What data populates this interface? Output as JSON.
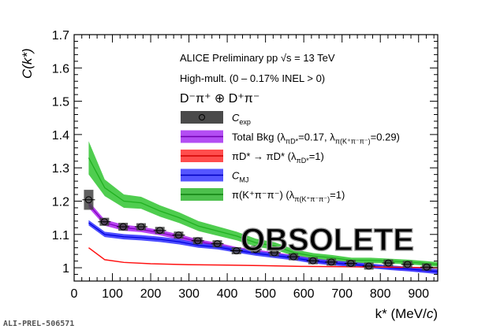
{
  "chart_data": {
    "type": "line",
    "xlabel_main": "k* (MeV/",
    "xlabel_c": "c",
    "xlabel_end": ")",
    "ylabel": "C(k*)",
    "xlim": [
      0,
      950
    ],
    "ylim": [
      0.96,
      1.7
    ],
    "xticks": [
      0,
      100,
      200,
      300,
      400,
      500,
      600,
      700,
      800,
      900
    ],
    "yticks": [
      1,
      1.1,
      1.2,
      1.3,
      1.4,
      1.5,
      1.6,
      1.7
    ],
    "annotations": {
      "line1": "ALICE Preliminary pp √s = 13 TeV",
      "line2": "High-mult. (0 – 0.17% INEL > 0)",
      "line3": "D⁻π⁺ ⊕ D⁺π⁻",
      "watermark": "OBSOLETE",
      "figure_id": "ALI-PREL-506571"
    },
    "legend": [
      {
        "key": "data",
        "color": "#555555",
        "parts": [
          {
            "t": "C"
          },
          {
            "sub": "exp"
          }
        ]
      },
      {
        "key": "total",
        "color": "#a020f0",
        "parts": [
          {
            "t": "Total Bkg (λ"
          },
          {
            "sub": "πD*"
          },
          {
            "t": "=0.17, λ"
          },
          {
            "sub": "π(K⁺π⁻π⁻)"
          },
          {
            "t": "=0.29)"
          }
        ]
      },
      {
        "key": "red",
        "color": "#ff2020",
        "parts": [
          {
            "t": "πD* → πD* (λ"
          },
          {
            "sub": "πD*"
          },
          {
            "t": "=1)"
          }
        ]
      },
      {
        "key": "mj",
        "color": "#2a2aff",
        "parts": [
          {
            "t": "C"
          },
          {
            "sub": "MJ"
          }
        ]
      },
      {
        "key": "green",
        "color": "#20b020",
        "parts": [
          {
            "t": "π(K⁺π⁻π⁻) (λ"
          },
          {
            "sub": "π(K⁺π⁻π⁻)"
          },
          {
            "t": "=1)"
          }
        ]
      }
    ],
    "data_points": {
      "x": [
        38,
        79,
        128,
        175,
        224,
        273,
        323,
        374,
        424,
        474,
        523,
        573,
        624,
        672,
        723,
        770,
        821,
        871,
        921
      ],
      "y": [
        1.204,
        1.138,
        1.123,
        1.123,
        1.112,
        1.098,
        1.081,
        1.072,
        1.051,
        1.055,
        1.045,
        1.033,
        1.021,
        1.017,
        1.013,
        1.005,
        1.014,
        1.01,
        1.002
      ],
      "syst": [
        0.03,
        0.012,
        0.012,
        0.01,
        0.008,
        0.008,
        0.007,
        0.007,
        0.006,
        0.006,
        0.006,
        0.005,
        0.005,
        0.005,
        0.005,
        0.005,
        0.005,
        0.005,
        0.005
      ]
    },
    "series": [
      {
        "name": "green",
        "color": "#20b020",
        "band": "#3cc83c",
        "x": [
          38,
          80,
          130,
          175,
          225,
          275,
          325,
          375,
          425,
          475,
          525,
          575,
          625,
          675,
          725,
          775,
          825,
          875,
          950
        ],
        "y": [
          1.33,
          1.24,
          1.2,
          1.195,
          1.17,
          1.15,
          1.125,
          1.11,
          1.095,
          1.075,
          1.065,
          1.045,
          1.035,
          1.03,
          1.022,
          1.022,
          1.02,
          1.017,
          1.01
        ],
        "err": [
          0.05,
          0.025,
          0.02,
          0.018,
          0.017,
          0.016,
          0.015,
          0.014,
          0.013,
          0.012,
          0.011,
          0.01,
          0.009,
          0.008,
          0.008,
          0.008,
          0.007,
          0.007,
          0.007
        ]
      },
      {
        "name": "total",
        "color": "#8000c0",
        "band": "#b030f0",
        "x": [
          38,
          80,
          130,
          175,
          225,
          275,
          325,
          375,
          425,
          475,
          525,
          575,
          625,
          675,
          725,
          775,
          825,
          875,
          950
        ],
        "y": [
          1.19,
          1.135,
          1.12,
          1.115,
          1.105,
          1.092,
          1.078,
          1.068,
          1.055,
          1.048,
          1.04,
          1.032,
          1.022,
          1.016,
          1.011,
          1.006,
          1.0,
          0.996,
          0.99
        ],
        "err": [
          0.01,
          0.009,
          0.009,
          0.008,
          0.008,
          0.008,
          0.007,
          0.007,
          0.007,
          0.007,
          0.006,
          0.006,
          0.006,
          0.006,
          0.006,
          0.006,
          0.006,
          0.006,
          0.006
        ]
      },
      {
        "name": "mj",
        "color": "#0000e0",
        "band": "#3a3aff",
        "x": [
          38,
          80,
          130,
          175,
          225,
          275,
          325,
          375,
          425,
          475,
          525,
          575,
          625,
          675,
          725,
          775,
          825,
          875,
          950
        ],
        "y": [
          1.135,
          1.1,
          1.093,
          1.09,
          1.085,
          1.078,
          1.067,
          1.062,
          1.052,
          1.043,
          1.036,
          1.029,
          1.02,
          1.014,
          1.01,
          1.005,
          1.0,
          0.996,
          0.988
        ],
        "err": [
          0.008,
          0.008,
          0.008,
          0.008,
          0.008,
          0.008,
          0.007,
          0.007,
          0.007,
          0.007,
          0.007,
          0.007,
          0.007,
          0.007,
          0.007,
          0.007,
          0.007,
          0.007,
          0.007
        ]
      },
      {
        "name": "red",
        "color": "#ff1010",
        "band": "#ff4040",
        "x": [
          38,
          80,
          130,
          200,
          300,
          400,
          500,
          600,
          700,
          800,
          950
        ],
        "y": [
          1.06,
          1.024,
          1.016,
          1.012,
          1.009,
          1.008,
          1.006,
          1.004,
          1.003,
          1.002,
          1.0
        ],
        "err": [
          0,
          0,
          0,
          0,
          0,
          0,
          0,
          0,
          0,
          0,
          0
        ]
      }
    ]
  }
}
